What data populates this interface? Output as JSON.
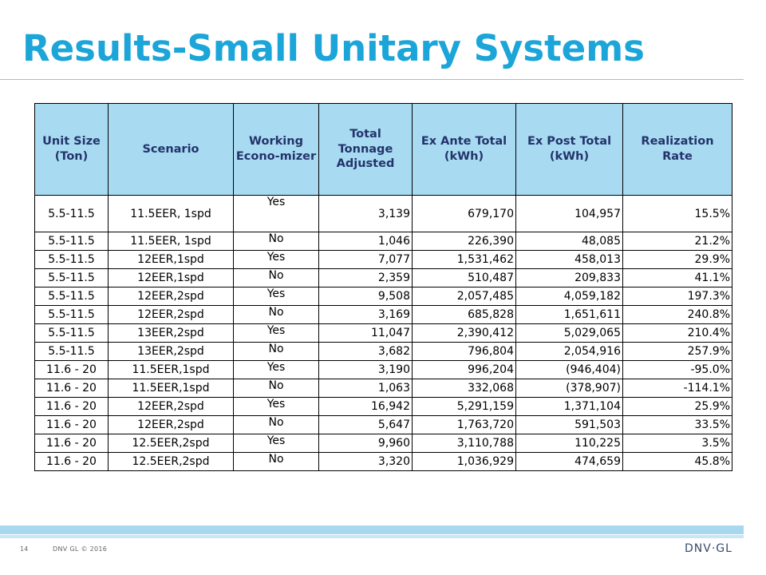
{
  "slide": {
    "title": "Results-Small Unitary Systems",
    "page_number": "14",
    "copyright": "DNV GL © 2016",
    "logo_text": "DNV·GL"
  },
  "table": {
    "headers": [
      "Unit Size (Ton)",
      "Scenario",
      "Working Econo-mizer",
      "Total Tonnage Adjusted",
      "Ex Ante Total (kWh)",
      "Ex Post Total (kWh)",
      "Realization Rate"
    ],
    "rows": [
      [
        "5.5-11.5",
        "11.5EER, 1spd",
        "Yes",
        "3,139",
        "679,170",
        "104,957",
        "15.5%"
      ],
      [
        "5.5-11.5",
        "11.5EER, 1spd",
        "No",
        "1,046",
        "226,390",
        "48,085",
        "21.2%"
      ],
      [
        "5.5-11.5",
        "12EER,1spd",
        "Yes",
        "7,077",
        "1,531,462",
        "458,013",
        "29.9%"
      ],
      [
        "5.5-11.5",
        "12EER,1spd",
        "No",
        "2,359",
        "510,487",
        "209,833",
        "41.1%"
      ],
      [
        "5.5-11.5",
        "12EER,2spd",
        "Yes",
        "9,508",
        "2,057,485",
        "4,059,182",
        "197.3%"
      ],
      [
        "5.5-11.5",
        "12EER,2spd",
        "No",
        "3,169",
        "685,828",
        "1,651,611",
        "240.8%"
      ],
      [
        "5.5-11.5",
        "13EER,2spd",
        "Yes",
        "11,047",
        "2,390,412",
        "5,029,065",
        "210.4%"
      ],
      [
        "5.5-11.5",
        "13EER,2spd",
        "No",
        "3,682",
        "796,804",
        "2,054,916",
        "257.9%"
      ],
      [
        "11.6 - 20",
        "11.5EER,1spd",
        "Yes",
        "3,190",
        "996,204",
        "(946,404)",
        "-95.0%"
      ],
      [
        "11.6 - 20",
        "11.5EER,1spd",
        "No",
        "1,063",
        "332,068",
        "(378,907)",
        "-114.1%"
      ],
      [
        "11.6 - 20",
        "12EER,2spd",
        "Yes",
        "16,942",
        "5,291,159",
        "1,371,104",
        "25.9%"
      ],
      [
        "11.6 - 20",
        "12EER,2spd",
        "No",
        "5,647",
        "1,763,720",
        "591,503",
        "33.5%"
      ],
      [
        "11.6 - 20",
        "12.5EER,2spd",
        "Yes",
        "9,960",
        "3,110,788",
        "110,225",
        "3.5%"
      ],
      [
        "11.6 - 20",
        "12.5EER,2spd",
        "No",
        "3,320",
        "1,036,929",
        "474,659",
        "45.8%"
      ]
    ]
  }
}
